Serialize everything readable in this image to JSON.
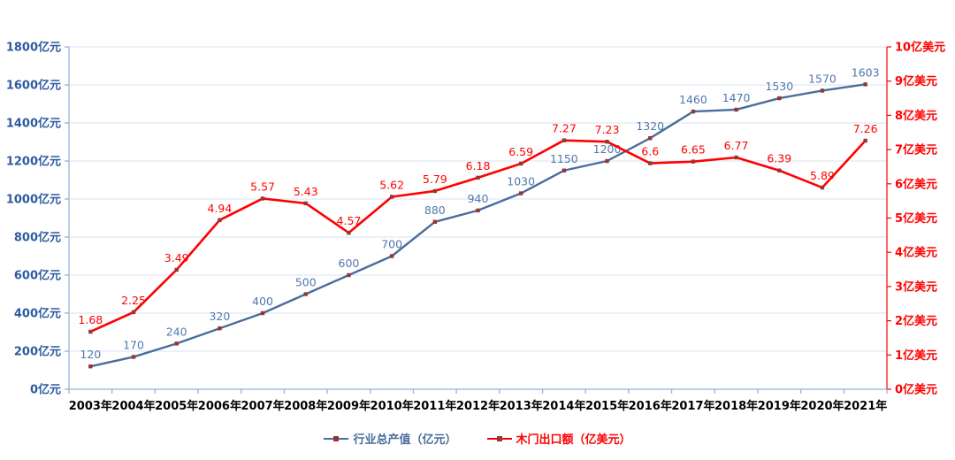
{
  "chart_data": {
    "type": "line",
    "categories": [
      "2003年",
      "2004年",
      "2005年",
      "2006年",
      "2007年",
      "2008年",
      "2009年",
      "2010年",
      "2011年",
      "2012年",
      "2013年",
      "2014年",
      "2015年",
      "2016年",
      "2017年",
      "2018年",
      "2019年",
      "2020年",
      "2021年"
    ],
    "series": [
      {
        "name": "行业总产值（亿元）",
        "axis": "left",
        "color": "#4a6d9b",
        "marker_color": "#943634",
        "label_color": "#4f78ae",
        "values": [
          120,
          170,
          240,
          320,
          400,
          500,
          600,
          700,
          880,
          940,
          1030,
          1150,
          1200,
          1320,
          1460,
          1470,
          1530,
          1570,
          1603
        ]
      },
      {
        "name": "木门出口额（亿美元）",
        "axis": "right",
        "color": "#ff0000",
        "marker_color": "#943634",
        "label_color": "#ff0000",
        "values": [
          1.68,
          2.25,
          3.49,
          4.94,
          5.57,
          5.43,
          4.57,
          5.62,
          5.79,
          6.18,
          6.59,
          7.27,
          7.23,
          6.6,
          6.65,
          6.77,
          6.39,
          5.89,
          7.26
        ]
      }
    ],
    "left_axis": {
      "min": 0,
      "max": 1800,
      "step": 200,
      "suffix": "亿元",
      "tick_labels": [
        "0亿元",
        "200亿元",
        "400亿元",
        "600亿元",
        "800亿元",
        "1000亿元",
        "1200亿元",
        "1400亿元",
        "1600亿元",
        "1800亿元"
      ],
      "label_color": "#2e5b9e",
      "line_color": "#95b3d7"
    },
    "right_axis": {
      "min": 0,
      "max": 10,
      "step": 1,
      "suffix": "亿美元",
      "tick_labels": [
        "0亿美元",
        "1亿美元",
        "2亿美元",
        "3亿美元",
        "4亿美元",
        "5亿美元",
        "6亿美元",
        "7亿美元",
        "8亿美元",
        "9亿美元",
        "10亿美元"
      ],
      "label_color": "#ff0000",
      "line_color": "#ff0000"
    },
    "x_axis": {
      "label_color": "#000000",
      "line_color": "#95b3d7"
    },
    "grid": true,
    "gridline_color": "#d9e2f0",
    "legend_position": "bottom"
  }
}
